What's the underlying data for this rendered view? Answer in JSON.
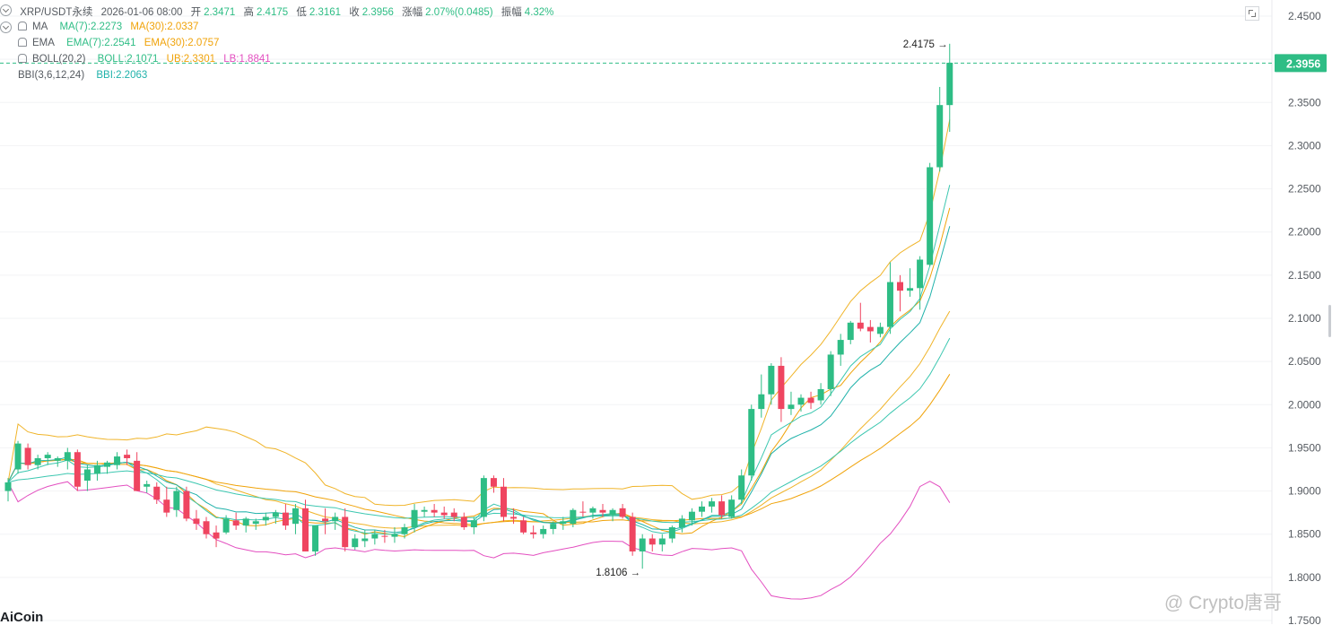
{
  "header": {
    "symbol": "XRP/USDT永续",
    "datetime": "2026-01-06 08:00",
    "open_label": "开",
    "open": "2.3471",
    "high_label": "高",
    "high": "2.4175",
    "low_label": "低",
    "low": "2.3161",
    "close_label": "收",
    "close": "2.3956",
    "change_label": "涨幅",
    "change": "2.07%(0.0485)",
    "amplitude_label": "振幅",
    "amplitude": "4.32%"
  },
  "indicators": {
    "ma": {
      "label": "MA",
      "ma7": "MA(7):2.2273",
      "ma30": "MA(30):2.0337"
    },
    "ema": {
      "label": "EMA",
      "ema7": "EMA(7):2.2541",
      "ema30": "EMA(30):2.0757"
    },
    "boll": {
      "label": "BOLL(20,2)",
      "mid": "BOLL:2.1071",
      "ub": "UB:2.3301",
      "lb": "LB:1.8841"
    },
    "bbi": {
      "label": "BBI(3,6,12,24)",
      "value": "BBI:2.2063"
    }
  },
  "colors": {
    "up": "#2ebd85",
    "down": "#ef4560",
    "ma7": "#f0a30a",
    "ma30": "#f0a30a",
    "ema": "#3cc7b0",
    "boll_band": "#f0b429",
    "boll_lower": "#e34fc0",
    "bbi": "#20b2aa",
    "last_price_bg": "#2ebd85"
  },
  "chart_data": {
    "type": "candlestick",
    "ylim": [
      1.75,
      2.4537
    ],
    "y_ticks": [
      "2.4500",
      "2.4000",
      "2.3500",
      "2.3000",
      "2.2500",
      "2.2000",
      "2.1500",
      "2.1000",
      "2.0500",
      "2.0000",
      "1.9500",
      "1.9000",
      "1.8500",
      "1.8000",
      "1.7500"
    ],
    "last_price": "2.3956",
    "max_marker": "2.4175",
    "min_marker": "1.8106",
    "candles": [
      [
        1.9,
        1.915,
        1.888,
        1.91
      ],
      [
        1.925,
        1.958,
        1.92,
        1.955
      ],
      [
        1.95,
        1.955,
        1.925,
        1.93
      ],
      [
        1.93,
        1.942,
        1.925,
        1.938
      ],
      [
        1.938,
        1.945,
        1.93,
        1.942
      ],
      [
        1.935,
        1.94,
        1.928,
        1.938
      ],
      [
        1.935,
        1.95,
        1.925,
        1.945
      ],
      [
        1.945,
        1.948,
        1.9,
        1.905
      ],
      [
        1.912,
        1.93,
        1.9,
        1.925
      ],
      [
        1.92,
        1.935,
        1.912,
        1.93
      ],
      [
        1.928,
        1.935,
        1.92,
        1.933
      ],
      [
        1.93,
        1.945,
        1.925,
        1.94
      ],
      [
        1.942,
        1.948,
        1.93,
        1.938
      ],
      [
        1.935,
        1.945,
        1.9,
        1.9
      ],
      [
        1.905,
        1.912,
        1.898,
        1.908
      ],
      [
        1.905,
        1.91,
        1.885,
        1.89
      ],
      [
        1.89,
        1.905,
        1.87,
        1.875
      ],
      [
        1.878,
        1.905,
        1.87,
        1.9
      ],
      [
        1.9,
        1.905,
        1.865,
        1.868
      ],
      [
        1.868,
        1.878,
        1.855,
        1.862
      ],
      [
        1.865,
        1.87,
        1.845,
        1.85
      ],
      [
        1.852,
        1.86,
        1.835,
        1.845
      ],
      [
        1.852,
        1.872,
        1.85,
        1.868
      ],
      [
        1.866,
        1.875,
        1.855,
        1.86
      ],
      [
        1.86,
        1.87,
        1.852,
        1.868
      ],
      [
        1.862,
        1.868,
        1.855,
        1.865
      ],
      [
        1.866,
        1.875,
        1.86,
        1.87
      ],
      [
        1.87,
        1.878,
        1.862,
        1.875
      ],
      [
        1.875,
        1.885,
        1.855,
        1.86
      ],
      [
        1.862,
        1.885,
        1.85,
        1.88
      ],
      [
        1.88,
        1.89,
        1.83,
        1.83
      ],
      [
        1.83,
        1.86,
        1.825,
        1.86
      ],
      [
        1.868,
        1.88,
        1.85,
        1.865
      ],
      [
        1.865,
        1.875,
        1.855,
        1.87
      ],
      [
        1.87,
        1.88,
        1.83,
        1.835
      ],
      [
        1.835,
        1.85,
        1.832,
        1.845
      ],
      [
        1.842,
        1.855,
        1.835,
        1.845
      ],
      [
        1.845,
        1.855,
        1.838,
        1.85
      ],
      [
        1.848,
        1.855,
        1.84,
        1.847
      ],
      [
        1.847,
        1.858,
        1.84,
        1.85
      ],
      [
        1.85,
        1.862,
        1.845,
        1.858
      ],
      [
        1.858,
        1.885,
        1.852,
        1.878
      ],
      [
        1.876,
        1.882,
        1.87,
        1.878
      ],
      [
        1.878,
        1.885,
        1.87,
        1.875
      ],
      [
        1.875,
        1.882,
        1.868,
        1.872
      ],
      [
        1.875,
        1.88,
        1.865,
        1.87
      ],
      [
        1.87,
        1.875,
        1.855,
        1.858
      ],
      [
        1.858,
        1.87,
        1.85,
        1.866
      ],
      [
        1.87,
        1.918,
        1.865,
        1.915
      ],
      [
        1.915,
        1.918,
        1.898,
        1.905
      ],
      [
        1.905,
        1.915,
        1.865,
        1.87
      ],
      [
        1.87,
        1.88,
        1.862,
        1.868
      ],
      [
        1.866,
        1.87,
        1.85,
        1.852
      ],
      [
        1.852,
        1.86,
        1.845,
        1.85
      ],
      [
        1.85,
        1.86,
        1.845,
        1.856
      ],
      [
        1.856,
        1.865,
        1.85,
        1.862
      ],
      [
        1.862,
        1.87,
        1.855,
        1.865
      ],
      [
        1.862,
        1.88,
        1.858,
        1.878
      ],
      [
        1.876,
        1.888,
        1.87,
        1.875
      ],
      [
        1.875,
        1.882,
        1.868,
        1.88
      ],
      [
        1.878,
        1.885,
        1.87,
        1.875
      ],
      [
        1.872,
        1.88,
        1.865,
        1.878
      ],
      [
        1.88,
        1.885,
        1.868,
        1.87
      ],
      [
        1.87,
        1.875,
        1.825,
        1.83
      ],
      [
        1.83,
        1.85,
        1.81,
        1.845
      ],
      [
        1.845,
        1.85,
        1.83,
        1.838
      ],
      [
        1.838,
        1.85,
        1.83,
        1.845
      ],
      [
        1.845,
        1.86,
        1.84,
        1.858
      ],
      [
        1.858,
        1.872,
        1.852,
        1.868
      ],
      [
        1.866,
        1.88,
        1.86,
        1.876
      ],
      [
        1.876,
        1.888,
        1.87,
        1.882
      ],
      [
        1.882,
        1.892,
        1.875,
        1.888
      ],
      [
        1.888,
        1.895,
        1.868,
        1.872
      ],
      [
        1.87,
        1.895,
        1.868,
        1.89
      ],
      [
        1.89,
        1.925,
        1.885,
        1.918
      ],
      [
        1.918,
        2.0,
        1.912,
        1.995
      ],
      [
        1.995,
        2.035,
        1.985,
        2.012
      ],
      [
        2.012,
        2.048,
        2.0,
        2.045
      ],
      [
        2.045,
        2.055,
        1.98,
        1.995
      ],
      [
        1.995,
        2.015,
        1.988,
        2.0
      ],
      [
        2.0,
        2.012,
        1.992,
        2.008
      ],
      [
        2.008,
        2.015,
        1.995,
        2.002
      ],
      [
        2.005,
        2.025,
        2.0,
        2.018
      ],
      [
        2.018,
        2.062,
        2.01,
        2.058
      ],
      [
        2.058,
        2.082,
        2.045,
        2.075
      ],
      [
        2.075,
        2.097,
        2.07,
        2.095
      ],
      [
        2.095,
        2.118,
        2.085,
        2.088
      ],
      [
        2.09,
        2.098,
        2.072,
        2.085
      ],
      [
        2.082,
        2.095,
        2.078,
        2.09
      ],
      [
        2.09,
        2.165,
        2.082,
        2.142
      ],
      [
        2.142,
        2.15,
        2.108,
        2.132
      ],
      [
        2.132,
        2.158,
        2.125,
        2.135
      ],
      [
        2.135,
        2.172,
        2.11,
        2.168
      ],
      [
        2.162,
        2.28,
        2.16,
        2.275
      ],
      [
        2.275,
        2.368,
        2.27,
        2.347
      ],
      [
        2.347,
        2.418,
        2.316,
        2.396
      ]
    ]
  },
  "branding": {
    "logo": "AiCoin",
    "watermark": "@ Crypto唐哥"
  }
}
